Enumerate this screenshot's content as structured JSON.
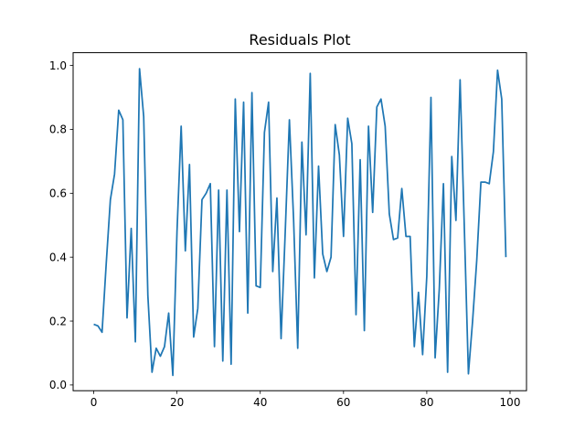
{
  "chart_data": {
    "type": "line",
    "title": "Residuals Plot",
    "xlabel": "",
    "ylabel": "",
    "xlim": [
      -4.95,
      103.95
    ],
    "ylim": [
      -0.018,
      1.04
    ],
    "xticks": [
      0,
      20,
      40,
      60,
      80,
      100
    ],
    "yticks": [
      0.0,
      0.2,
      0.4,
      0.6,
      0.8,
      1.0
    ],
    "xtick_labels": [
      "0",
      "20",
      "40",
      "60",
      "80",
      "100"
    ],
    "ytick_labels": [
      "0.0",
      "0.2",
      "0.4",
      "0.6",
      "0.8",
      "1.0"
    ],
    "grid": false,
    "series": [
      {
        "color": "#1f77b4",
        "x": [
          0,
          1,
          2,
          3,
          4,
          5,
          6,
          7,
          8,
          9,
          10,
          11,
          12,
          13,
          14,
          15,
          16,
          17,
          18,
          19,
          20,
          21,
          22,
          23,
          24,
          25,
          26,
          27,
          28,
          29,
          30,
          31,
          32,
          33,
          34,
          35,
          36,
          37,
          38,
          39,
          40,
          41,
          42,
          43,
          44,
          45,
          46,
          47,
          48,
          49,
          50,
          51,
          52,
          53,
          54,
          55,
          56,
          57,
          58,
          59,
          60,
          61,
          62,
          63,
          64,
          65,
          66,
          67,
          68,
          69,
          70,
          71,
          72,
          73,
          74,
          75,
          76,
          77,
          78,
          79,
          80,
          81,
          82,
          83,
          84,
          85,
          86,
          87,
          88,
          89,
          90,
          91,
          92,
          93,
          94,
          95,
          96,
          97,
          98,
          99
        ],
        "y": [
          0.19,
          0.185,
          0.165,
          0.38,
          0.58,
          0.66,
          0.86,
          0.83,
          0.21,
          0.49,
          0.135,
          0.99,
          0.84,
          0.28,
          0.04,
          0.115,
          0.09,
          0.12,
          0.225,
          0.03,
          0.48,
          0.81,
          0.42,
          0.69,
          0.15,
          0.24,
          0.58,
          0.6,
          0.63,
          0.12,
          0.61,
          0.075,
          0.61,
          0.065,
          0.895,
          0.48,
          0.885,
          0.225,
          0.915,
          0.31,
          0.305,
          0.79,
          0.885,
          0.355,
          0.585,
          0.145,
          0.48,
          0.83,
          0.52,
          0.115,
          0.76,
          0.47,
          0.975,
          0.335,
          0.685,
          0.41,
          0.355,
          0.4,
          0.815,
          0.72,
          0.465,
          0.835,
          0.755,
          0.22,
          0.705,
          0.17,
          0.81,
          0.54,
          0.87,
          0.895,
          0.81,
          0.535,
          0.455,
          0.46,
          0.615,
          0.465,
          0.465,
          0.12,
          0.29,
          0.095,
          0.34,
          0.9,
          0.085,
          0.3,
          0.63,
          0.04,
          0.715,
          0.515,
          0.955,
          0.5,
          0.035,
          0.2,
          0.39,
          0.635,
          0.635,
          0.63,
          0.73,
          0.985,
          0.895,
          0.4
        ]
      }
    ]
  }
}
